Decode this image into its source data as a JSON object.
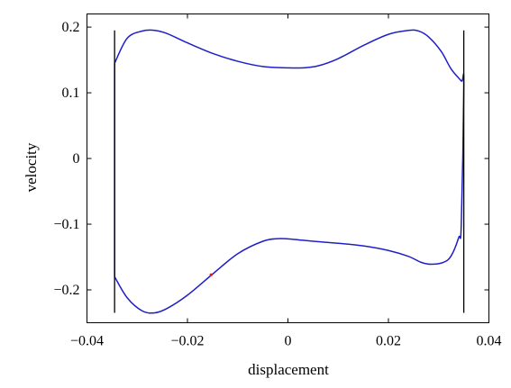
{
  "chart_data": {
    "type": "line",
    "title": "",
    "xlabel": "displacement",
    "ylabel": "velocity",
    "xlim": [
      -0.04,
      0.04
    ],
    "ylim": [
      -0.25,
      0.22
    ],
    "grid": false,
    "x_ticks": [
      -0.04,
      -0.02,
      0,
      0.02,
      0.04
    ],
    "x_tick_labels": [
      "−0.04",
      "−0.02",
      "0",
      "0.02",
      "0.04"
    ],
    "y_ticks": [
      0.2,
      0.1,
      0,
      -0.1,
      -0.2
    ],
    "y_tick_labels": [
      "0.2",
      "0.1",
      "0",
      "−0.1",
      "−0.2"
    ],
    "colors": {
      "orbit": "#1f1fc8",
      "barriers": "#000000",
      "marker": "#e0201e"
    },
    "series": [
      {
        "kind": "orbit",
        "x": [
          -0.0345,
          -0.032,
          -0.029,
          -0.0265,
          -0.024,
          -0.02,
          -0.015,
          -0.01,
          -0.005,
          0.0,
          0.003,
          0.006,
          0.01,
          0.015,
          0.02,
          0.024,
          0.026,
          0.028,
          0.0305,
          0.0325,
          0.0345,
          0.035,
          0.0345,
          0.034,
          0.0325,
          0.031,
          0.0285,
          0.0265,
          0.024,
          0.02,
          0.015,
          0.01,
          0.005,
          0.001,
          -0.002,
          -0.005,
          -0.01,
          -0.015,
          -0.02,
          -0.024,
          -0.0265,
          -0.029,
          -0.032,
          -0.0345
        ],
        "y": [
          0.145,
          0.183,
          0.194,
          0.195,
          0.19,
          0.176,
          0.16,
          0.148,
          0.14,
          0.138,
          0.138,
          0.141,
          0.152,
          0.172,
          0.189,
          0.195,
          0.194,
          0.185,
          0.163,
          0.136,
          0.118,
          0.112,
          -0.1,
          -0.12,
          -0.148,
          -0.158,
          -0.161,
          -0.158,
          -0.149,
          -0.14,
          -0.133,
          -0.129,
          -0.126,
          -0.123,
          -0.122,
          -0.126,
          -0.145,
          -0.176,
          -0.208,
          -0.228,
          -0.235,
          -0.232,
          -0.212,
          -0.18
        ]
      },
      {
        "kind": "barrier",
        "x": [
          -0.0345,
          -0.0345
        ],
        "y": [
          0.195,
          -0.235
        ]
      },
      {
        "kind": "barrier",
        "x": [
          0.035,
          0.035
        ],
        "y": [
          0.195,
          -0.235
        ]
      },
      {
        "kind": "marker",
        "x": [
          -0.0153
        ],
        "y": [
          -0.177
        ]
      }
    ]
  }
}
